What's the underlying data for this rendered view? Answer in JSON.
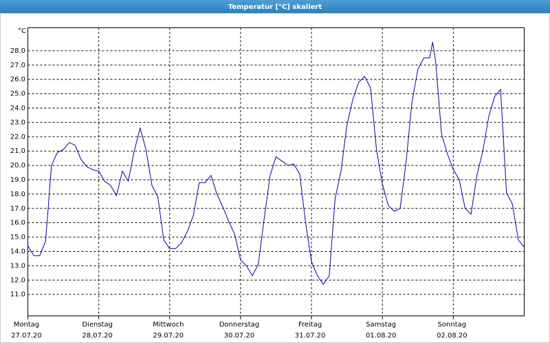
{
  "window_title": "Temperatur [°C] skaliert",
  "chart_data": {
    "type": "line",
    "unit_label": "°C",
    "x": [
      0,
      2,
      4,
      6,
      8,
      10,
      12,
      14,
      16,
      18,
      20,
      22,
      24,
      26,
      28,
      30,
      32,
      34,
      36,
      38,
      40,
      42,
      44,
      46,
      48,
      50,
      52,
      54,
      56,
      58,
      60,
      62,
      64,
      66,
      68,
      70,
      72,
      74,
      76,
      78,
      80,
      82,
      84,
      86,
      88,
      90,
      92,
      94,
      96,
      98,
      100,
      102,
      104,
      106,
      108,
      110,
      112,
      114,
      116,
      118,
      120,
      122,
      124,
      126,
      128,
      130,
      132,
      134,
      136,
      137,
      138,
      140,
      142,
      144,
      146,
      148,
      150,
      152,
      154,
      156,
      158,
      160,
      162,
      164,
      166,
      168
    ],
    "series": [
      {
        "color": "#0000a0",
        "values": [
          14.4,
          13.7,
          13.7,
          14.7,
          20.0,
          20.9,
          21.1,
          21.6,
          21.4,
          20.4,
          19.9,
          19.7,
          19.6,
          18.9,
          18.6,
          17.9,
          19.6,
          18.9,
          21.0,
          22.6,
          21.1,
          18.6,
          17.8,
          14.8,
          14.2,
          14.2,
          14.6,
          15.4,
          16.5,
          18.8,
          18.8,
          19.3,
          18.0,
          17.1,
          16.1,
          15.2,
          13.4,
          13.0,
          12.3,
          13.1,
          16.3,
          19.3,
          20.6,
          20.3,
          20.0,
          20.1,
          19.4,
          16.0,
          13.3,
          12.3,
          11.7,
          12.3,
          17.7,
          19.6,
          22.8,
          24.6,
          25.8,
          26.2,
          25.4,
          21.1,
          18.7,
          17.2,
          16.8,
          17.0,
          20.2,
          24.4,
          26.7,
          27.5,
          27.5,
          28.6,
          27.3,
          22.2,
          20.8,
          19.7,
          19.0,
          17.0,
          16.6,
          19.3,
          21.0,
          23.4,
          24.8,
          25.3,
          18.1,
          17.3,
          14.8,
          14.3
        ]
      }
    ],
    "xlim": [
      0,
      168
    ],
    "xticks": [
      {
        "value": 0,
        "label": "Montag",
        "date": "27.07.20"
      },
      {
        "value": 24,
        "label": "Dienstag",
        "date": "28.07.20"
      },
      {
        "value": 48,
        "label": "Mittwoch",
        "date": "29.07.20"
      },
      {
        "value": 72,
        "label": "Donnerstag",
        "date": "30.07.20"
      },
      {
        "value": 96,
        "label": "Freitag",
        "date": "31.07.20"
      },
      {
        "value": 120,
        "label": "Samstag",
        "date": "01.08.20"
      },
      {
        "value": 144,
        "label": "Sonntag",
        "date": "02.08.20"
      }
    ],
    "ylim": [
      9.5,
      29.6
    ],
    "yticks": [
      {
        "value": 11,
        "label": "11.0"
      },
      {
        "value": 12,
        "label": "12.0"
      },
      {
        "value": 13,
        "label": "13.0"
      },
      {
        "value": 14,
        "label": "14.0"
      },
      {
        "value": 15,
        "label": "15.0"
      },
      {
        "value": 16,
        "label": "16.0"
      },
      {
        "value": 17,
        "label": "17.0"
      },
      {
        "value": 18,
        "label": "18.0"
      },
      {
        "value": 19,
        "label": "19.0"
      },
      {
        "value": 20,
        "label": "20.0"
      },
      {
        "value": 21,
        "label": "21.0"
      },
      {
        "value": 22,
        "label": "22.0"
      },
      {
        "value": 23,
        "label": "23.0"
      },
      {
        "value": 24,
        "label": "24.0"
      },
      {
        "value": 25,
        "label": "25.0"
      },
      {
        "value": 26,
        "label": "26.0"
      },
      {
        "value": 27,
        "label": "27.0"
      },
      {
        "value": 28,
        "label": "28.0"
      }
    ],
    "grid": true
  }
}
